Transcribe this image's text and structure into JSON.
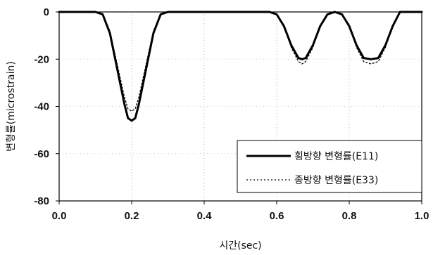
{
  "chart_data": {
    "type": "line",
    "xlabel": "시간(sec)",
    "ylabel": "변형률(microstrain)",
    "xlim": [
      0.0,
      1.0
    ],
    "ylim": [
      -80,
      0
    ],
    "x_ticks": [
      "0.0",
      "0.2",
      "0.4",
      "0.6",
      "0.8",
      "1.0"
    ],
    "y_ticks": [
      "0",
      "-20",
      "-40",
      "-60",
      "-80"
    ],
    "grid": "vertical dotted",
    "legend_position": "bottom-right",
    "series": [
      {
        "name": "횡방향 변형률(E11)",
        "style": "solid",
        "color": "#000000",
        "x": [
          0.0,
          0.1,
          0.12,
          0.14,
          0.16,
          0.18,
          0.19,
          0.2,
          0.21,
          0.22,
          0.24,
          0.26,
          0.28,
          0.3,
          0.58,
          0.6,
          0.62,
          0.64,
          0.66,
          0.67,
          0.68,
          0.7,
          0.72,
          0.74,
          0.76,
          0.78,
          0.8,
          0.82,
          0.84,
          0.86,
          0.88,
          0.9,
          0.92,
          0.94,
          1.0
        ],
        "y": [
          0,
          0,
          -1,
          -9,
          -24,
          -39,
          -45,
          -46,
          -45,
          -39,
          -24,
          -9,
          -1,
          0,
          0,
          -1,
          -6,
          -14,
          -19.5,
          -20,
          -19.5,
          -14,
          -6,
          -1,
          0,
          -1,
          -6,
          -14,
          -19.5,
          -20,
          -19.5,
          -14,
          -6,
          0,
          0
        ]
      },
      {
        "name": "종방향 변형률(E33)",
        "style": "dotted",
        "color": "#000000",
        "x": [
          0.0,
          0.1,
          0.12,
          0.14,
          0.16,
          0.18,
          0.19,
          0.2,
          0.21,
          0.22,
          0.24,
          0.26,
          0.28,
          0.3,
          0.58,
          0.6,
          0.62,
          0.64,
          0.66,
          0.67,
          0.68,
          0.7,
          0.72,
          0.74,
          0.76,
          0.78,
          0.8,
          0.82,
          0.84,
          0.86,
          0.88,
          0.9,
          0.92,
          0.94,
          1.0
        ],
        "y": [
          0,
          0,
          -1,
          -8,
          -22,
          -36,
          -41,
          -42,
          -41,
          -36,
          -22,
          -8,
          -1,
          0,
          0,
          -1,
          -6,
          -15,
          -21,
          -22,
          -21,
          -15,
          -6,
          -1,
          0,
          -1,
          -6,
          -15,
          -21,
          -22,
          -21,
          -15,
          -6,
          0,
          0
        ]
      }
    ]
  }
}
